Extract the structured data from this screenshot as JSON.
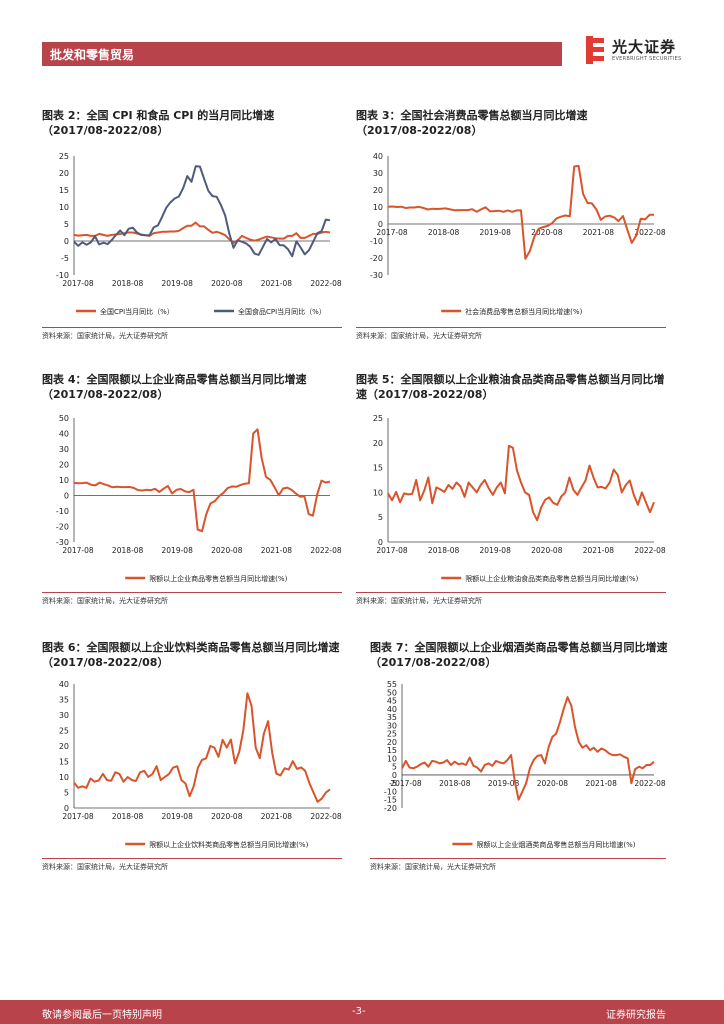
{
  "header": {
    "section": "批发和零售贸易",
    "brand_cn": "光大证券",
    "brand_en": "EVERBRIGHT SECURITIES"
  },
  "footer": {
    "left": "敬请参阅最后一页特别声明",
    "page": "-3-",
    "right": "证券研究报告"
  },
  "charts": [
    {
      "title": "图表 2：全国 CPI 和食品 CPI 的当月同比增速",
      "subtitle": "（2017/08-2022/08）",
      "source": "资料来源：国家统计局，光大证券研究所"
    },
    {
      "title": "图表 3：全国社会消费品零售总额当月同比增速",
      "subtitle": "（2017/08-2022/08）",
      "source": "资料来源：国家统计局，光大证券研究所"
    },
    {
      "title": "图表 4：全国限额以上企业商品零售总额当月同比增速",
      "subtitle": "（2017/08-2022/08）",
      "source": "资料来源：国家统计局，光大证券研究所"
    },
    {
      "title": "图表 5：全国限额以上企业粮油食品类商品零售总额当月同比增",
      "subtitle": "速（2017/08-2022/08）",
      "source": "资料来源：国家统计局，光大证券研究所"
    },
    {
      "title": "图表 6：全国限额以上企业饮料类商品零售总额当月同比增速",
      "subtitle": "（2017/08-2022/08）",
      "source": "资料来源：国家统计局，光大证券研究所"
    },
    {
      "title": "图表 7：全国限额以上企业烟酒类商品零售总额当月同比增速",
      "subtitle": "（2017/08-2022/08）",
      "source": "资料来源：国家统计局，光大证券研究所"
    }
  ],
  "chart_data": [
    {
      "type": "line",
      "x_ticks": [
        "2017-08",
        "2018-08",
        "2019-08",
        "2020-08",
        "2021-08",
        "2022-08"
      ],
      "ylim": [
        -10,
        25
      ],
      "y_ticks": [
        -10,
        -5,
        0,
        5,
        10,
        15,
        20,
        25
      ],
      "legend": "bottom",
      "series": [
        {
          "name": "全国CPI当月同比（%）",
          "color": "#d9542b",
          "values": [
            1.8,
            1.6,
            1.7,
            1.8,
            1.5,
            1.5,
            2.1,
            1.8,
            1.5,
            1.8,
            1.9,
            2.1,
            2.3,
            2.5,
            2.5,
            2.2,
            1.9,
            1.7,
            1.5,
            2.3,
            2.5,
            2.7,
            2.7,
            2.8,
            2.8,
            3.0,
            3.8,
            4.5,
            4.5,
            5.4,
            4.3,
            4.3,
            3.3,
            2.4,
            2.7,
            2.3,
            1.7,
            0.5,
            -0.5,
            0.2,
            1.5,
            0.9,
            0.4,
            0.1,
            0.4,
            0.9,
            1.3,
            1.1,
            0.8,
            0.7,
            0.7,
            1.5,
            1.5,
            2.3,
            0.9,
            0.9,
            1.5,
            2.1,
            2.1,
            2.5,
            2.7,
            2.5
          ]
        },
        {
          "name": "全国食品CPI当月同比（%）",
          "color": "#4f5a7e",
          "values": [
            -0.2,
            -1.4,
            -0.4,
            -1.1,
            -0.4,
            1.4,
            -1.0,
            -0.5,
            -0.9,
            0.3,
            1.8,
            3.1,
            1.7,
            3.6,
            3.9,
            2.5,
            1.8,
            1.7,
            1.7,
            4.0,
            4.6,
            7.1,
            9.8,
            11.4,
            12.5,
            13.1,
            15.5,
            19.1,
            17.4,
            22.0,
            21.9,
            18.3,
            14.8,
            13.2,
            13.0,
            10.6,
            7.6,
            2.2,
            -2.0,
            0.2,
            -0.2,
            -0.7,
            -1.7,
            -3.7,
            -4.1,
            -1.7,
            0.6,
            -0.4,
            0.6,
            -1.2,
            -1.3,
            -2.4,
            -4.5,
            -0.1,
            -1.9,
            -3.9,
            -2.7,
            -0.2,
            2.3,
            2.9,
            6.3,
            6.1
          ]
        }
      ]
    },
    {
      "type": "line",
      "x_ticks": [
        "2017-08",
        "2018-08",
        "2019-08",
        "2020-08",
        "2021-08",
        "2022-08"
      ],
      "ylim": [
        -30,
        40
      ],
      "y_ticks": [
        -30,
        -20,
        -10,
        0,
        10,
        20,
        30,
        40
      ],
      "legend": "bottom",
      "series": [
        {
          "name": "社会消费品零售总额当月同比增速(%)",
          "color": "#d9542b",
          "values": [
            10.1,
            10.3,
            10.0,
            10.2,
            9.4,
            9.7,
            9.7,
            10.1,
            9.4,
            8.5,
            9.0,
            8.8,
            9.0,
            9.2,
            8.6,
            8.1,
            8.2,
            8.2,
            8.2,
            8.7,
            7.2,
            8.6,
            9.8,
            7.5,
            7.6,
            7.8,
            7.2,
            8.0,
            7.2,
            8.0,
            8.0,
            -20.5,
            -15.8,
            -7.5,
            -2.8,
            -1.8,
            -1.1,
            0.5,
            3.3,
            4.3,
            5.0,
            4.6,
            33.8,
            34.2,
            17.7,
            12.4,
            12.1,
            8.5,
            2.5,
            4.4,
            4.9,
            3.9,
            1.7,
            4.7,
            -3.5,
            -11.1,
            -6.7,
            3.1,
            2.7,
            5.4,
            5.4
          ]
        }
      ]
    },
    {
      "type": "line",
      "x_ticks": [
        "2017-08",
        "2018-08",
        "2019-08",
        "2020-08",
        "2021-08",
        "2022-08"
      ],
      "ylim": [
        -30,
        50
      ],
      "y_ticks": [
        -30,
        -20,
        -10,
        0,
        10,
        20,
        30,
        40,
        50
      ],
      "legend": "bottom",
      "series": [
        {
          "name": "限额以上企业商品零售总额当月同比增速(%)",
          "color": "#d9542b",
          "values": [
            8.1,
            7.9,
            8.0,
            8.3,
            6.9,
            6.5,
            8.3,
            7.3,
            6.5,
            5.3,
            5.7,
            5.5,
            5.4,
            5.5,
            4.9,
            3.5,
            3.2,
            3.7,
            3.4,
            4.3,
            2.3,
            4.4,
            6.1,
            1.3,
            3.6,
            4.2,
            2.7,
            2.2,
            3.7,
            -22.0,
            -23.0,
            -12.0,
            -5.1,
            -3.7,
            -0.4,
            1.7,
            4.8,
            5.8,
            5.6,
            6.7,
            7.6,
            7.9,
            40.0,
            42.7,
            24.0,
            12.0,
            10.1,
            5.3,
            0.2,
            4.5,
            5.1,
            3.6,
            1.2,
            -0.8,
            -0.5,
            -12.0,
            -13.0,
            0.7,
            9.6,
            8.4,
            9.0
          ]
        }
      ]
    },
    {
      "type": "line",
      "x_ticks": [
        "2017-08",
        "2018-08",
        "2019-08",
        "2020-08",
        "2021-08",
        "2022-08"
      ],
      "ylim": [
        0,
        25
      ],
      "y_ticks": [
        0,
        5,
        10,
        15,
        20,
        25
      ],
      "legend": "bottom",
      "series": [
        {
          "name": "限额以上企业粮油食品类商品零售总额当月同比增速(%)",
          "color": "#d9542b",
          "values": [
            9.8,
            8.4,
            10.1,
            8.0,
            9.8,
            9.6,
            9.7,
            12.5,
            8.4,
            10.4,
            13.0,
            7.8,
            11.0,
            10.6,
            10.1,
            11.5,
            10.7,
            12.0,
            11.2,
            9.1,
            12.0,
            11.0,
            10.0,
            11.5,
            12.5,
            10.8,
            9.5,
            11.0,
            12.0,
            9.8,
            19.4,
            19.0,
            14.4,
            12.0,
            10.0,
            9.5,
            6.0,
            4.4,
            7.0,
            8.5,
            9.0,
            7.9,
            7.5,
            9.2,
            10.0,
            13.0,
            10.5,
            9.5,
            11.0,
            12.4,
            15.4,
            13.0,
            11.0,
            11.1,
            10.8,
            12.0,
            14.6,
            13.5,
            10.0,
            11.5,
            12.4,
            9.5,
            7.5,
            10.0,
            8.0,
            6.0,
            8.0
          ]
        }
      ]
    },
    {
      "type": "line",
      "x_ticks": [
        "2017-08",
        "2018-08",
        "2019-08",
        "2020-08",
        "2021-08",
        "2022-08"
      ],
      "ylim": [
        0,
        40
      ],
      "y_ticks": [
        0,
        5,
        10,
        15,
        20,
        25,
        30,
        35,
        40
      ],
      "legend": "bottom",
      "series": [
        {
          "name": "限额以上企业饮料类商品零售总额当月同比增速(%)",
          "color": "#d9542b",
          "values": [
            8.2,
            6.5,
            7.0,
            6.5,
            9.5,
            8.5,
            8.9,
            11.0,
            9.0,
            8.8,
            11.5,
            11.0,
            8.5,
            10.0,
            9.0,
            8.7,
            11.5,
            12.0,
            10.0,
            11.0,
            13.5,
            9.0,
            10.0,
            11.0,
            13.0,
            13.5,
            9.0,
            7.9,
            3.8,
            7.0,
            13.0,
            15.5,
            16.0,
            20.0,
            19.5,
            16.5,
            22.0,
            19.5,
            22.1,
            14.4,
            18.1,
            25.0,
            37.0,
            33.0,
            19.5,
            16.1,
            24.0,
            28.0,
            17.8,
            11.1,
            10.5,
            12.8,
            12.4,
            15.1,
            12.6,
            13.1,
            12.0,
            8.0,
            5.0,
            2.0,
            3.0,
            5.0,
            6.0
          ]
        }
      ]
    },
    {
      "type": "line",
      "x_ticks": [
        "2017-08",
        "2018-08",
        "2019-08",
        "2020-08",
        "2021-08",
        "2022-08"
      ],
      "ylim": [
        -20,
        55
      ],
      "y_ticks": [
        -20,
        -15,
        -10,
        -5,
        0,
        5,
        10,
        15,
        20,
        25,
        30,
        35,
        40,
        45,
        50,
        55
      ],
      "legend": "bottom",
      "series": [
        {
          "name": "限额以上企业烟酒类商品零售总额当月同比增速(%)",
          "color": "#d9542b",
          "values": [
            4.0,
            8.5,
            4.5,
            4.0,
            5.0,
            6.5,
            7.5,
            5.0,
            8.5,
            8.0,
            7.0,
            7.5,
            9.0,
            6.0,
            8.0,
            6.5,
            7.0,
            6.0,
            10.5,
            5.5,
            4.5,
            2.0,
            6.0,
            7.0,
            5.5,
            8.5,
            7.5,
            7.0,
            9.0,
            12.0,
            -4.0,
            -15.0,
            -10.0,
            -5.0,
            4.0,
            9.0,
            11.5,
            12.0,
            7.0,
            17.0,
            23.0,
            25.0,
            32.0,
            40.0,
            47.0,
            42.0,
            29.0,
            20.0,
            16.5,
            18.0,
            15.0,
            16.5,
            14.0,
            16.0,
            15.0,
            13.0,
            12.0,
            12.0,
            12.5,
            11.0,
            10.0,
            -5.0,
            3.5,
            5.0,
            4.0,
            6.0,
            6.0,
            8.0
          ]
        }
      ]
    }
  ]
}
